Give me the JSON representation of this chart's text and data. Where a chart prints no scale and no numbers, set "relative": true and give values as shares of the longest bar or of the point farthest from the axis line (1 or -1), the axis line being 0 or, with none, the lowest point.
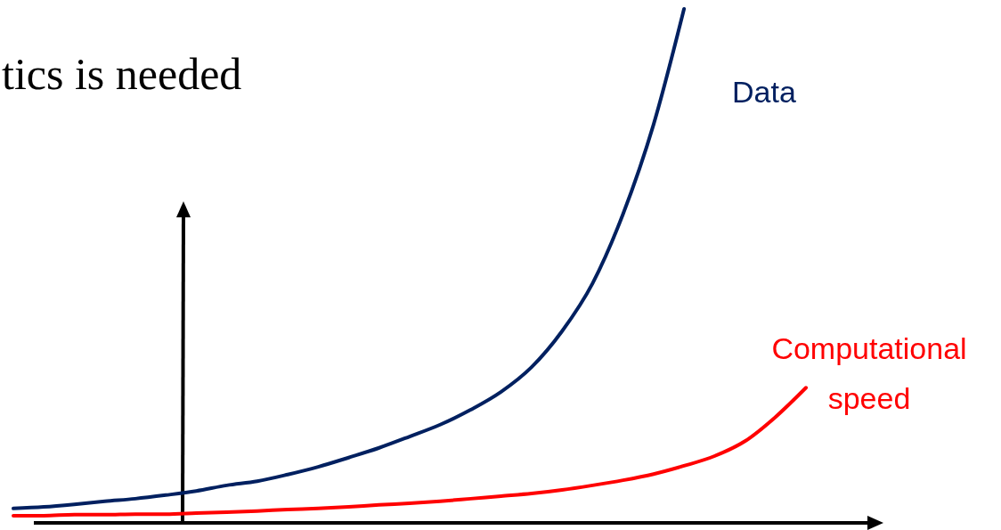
{
  "chart_data": {
    "type": "line",
    "title": "tics is needed",
    "relative": true,
    "categories": [
      null,
      null,
      null,
      null,
      null,
      null,
      null,
      null,
      null,
      null,
      null,
      null,
      null,
      null,
      null,
      null,
      null,
      null,
      null,
      null,
      null,
      null,
      null,
      null,
      null,
      null,
      null
    ],
    "series": [
      {
        "name": "Data",
        "color": "#002060",
        "values": [
          0.028,
          0.031,
          0.036,
          0.042,
          0.047,
          0.054,
          0.062,
          0.073,
          0.081,
          0.094,
          0.109,
          0.127,
          0.146,
          0.168,
          0.191,
          0.22,
          0.255,
          0.303,
          0.373,
          0.466,
          0.601,
          0.775,
          1,
          null,
          null,
          null,
          null
        ]
      },
      {
        "name": "Computational speed",
        "color": "#ff0000",
        "values": [
          0.014,
          0.014,
          0.016,
          0.016,
          0.017,
          0.017,
          0.019,
          0.021,
          0.023,
          0.026,
          0.028,
          0.031,
          0.035,
          0.038,
          0.042,
          0.047,
          0.052,
          0.057,
          0.064,
          0.073,
          0.083,
          0.095,
          0.111,
          0.13,
          0.159,
          0.206,
          0.263
        ]
      }
    ],
    "marker": "none",
    "line_style": "solid"
  }
}
